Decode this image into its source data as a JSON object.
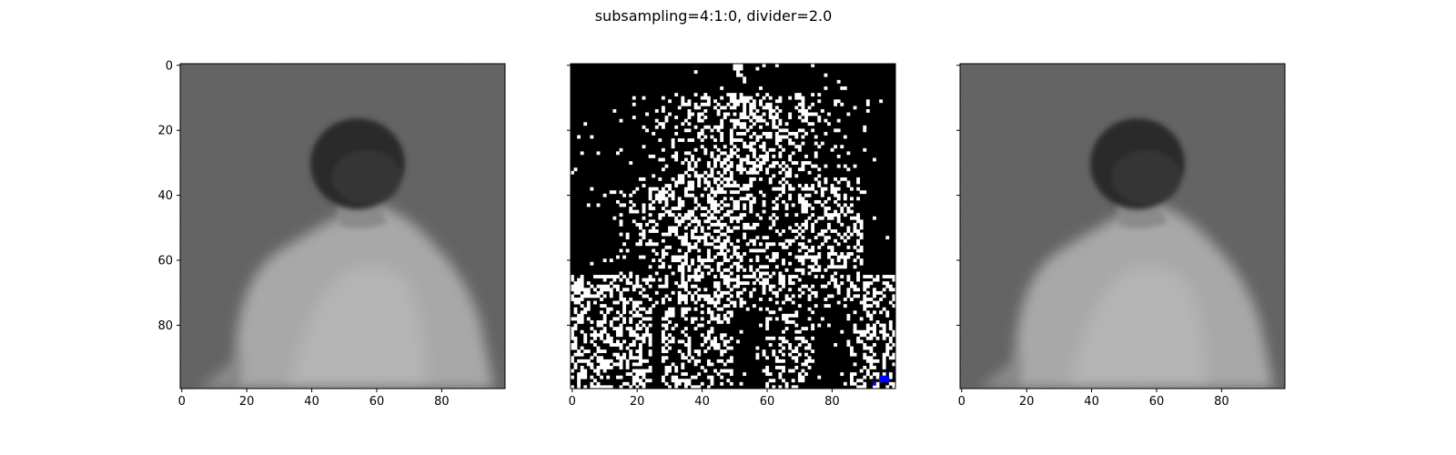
{
  "figure": {
    "title": "subsampling=4:1:0, divider=2.0"
  },
  "chart_data": [
    {
      "type": "heatmap",
      "panel": "left",
      "image_size": [
        100,
        100
      ],
      "colormap": "grayscale",
      "x_ticks": [
        0,
        20,
        40,
        60,
        80
      ],
      "y_ticks": [
        0,
        20,
        40,
        60,
        80
      ],
      "shows_y_tick_labels": true,
      "content": "grayscale photo of a person seen from behind, dark hair, light shirt, gray background"
    },
    {
      "type": "heatmap",
      "panel": "middle",
      "image_size": [
        100,
        100
      ],
      "colormap": "binary difference mask (black/white, a few blue pixels)",
      "x_ticks": [
        0,
        20,
        40,
        60,
        80
      ],
      "y_ticks": [
        0,
        20,
        40,
        60,
        80
      ],
      "shows_y_tick_labels": false,
      "colors": {
        "background": "#000000",
        "mask": "#ffffff",
        "highlight": "#0000ff"
      }
    },
    {
      "type": "heatmap",
      "panel": "right",
      "image_size": [
        100,
        100
      ],
      "colormap": "grayscale",
      "x_ticks": [
        0,
        20,
        40,
        60,
        80
      ],
      "y_ticks": [
        0,
        20,
        40,
        60,
        80
      ],
      "shows_y_tick_labels": false,
      "content": "grayscale photo of a person seen from behind (subsampled reconstruction)"
    }
  ]
}
